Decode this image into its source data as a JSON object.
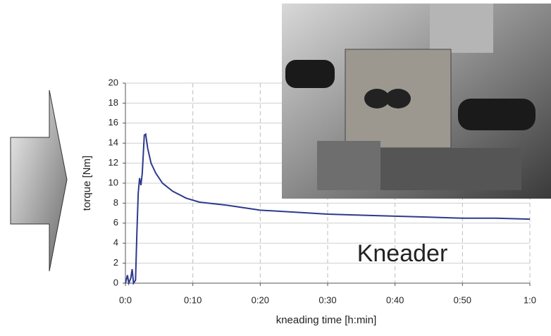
{
  "chart_data": {
    "type": "line",
    "xlabel": "kneading time [h:min]",
    "ylabel": "torque [Nm]",
    "annotation": "Kneader",
    "x": [
      0,
      0.3,
      0.5,
      0.8,
      1.0,
      1.2,
      1.5,
      1.7,
      1.9,
      2.1,
      2.3,
      2.5,
      2.8,
      3.0,
      3.3,
      3.8,
      4.5,
      5.5,
      7,
      9,
      11,
      15,
      20,
      25,
      30,
      35,
      40,
      45,
      50,
      55,
      60
    ],
    "values": [
      0,
      0.8,
      0,
      0.5,
      1.4,
      0,
      0.3,
      5,
      9,
      10.5,
      9.8,
      11,
      14.8,
      14.9,
      13.5,
      12,
      11,
      10,
      9.2,
      8.5,
      8.1,
      7.8,
      7.3,
      7.1,
      6.9,
      6.8,
      6.7,
      6.6,
      6.5,
      6.5,
      6.4
    ],
    "color": "#2e3a8c",
    "xlim": [
      0,
      60
    ],
    "xticks": [
      {
        "value": 0,
        "label": "0:0"
      },
      {
        "value": 10,
        "label": "0:10"
      },
      {
        "value": 20,
        "label": "0:20"
      },
      {
        "value": 30,
        "label": "0:30"
      },
      {
        "value": 40,
        "label": "0:40"
      },
      {
        "value": 50,
        "label": "0:50"
      },
      {
        "value": 60,
        "label": "1:0"
      }
    ],
    "ylim": [
      0,
      20
    ],
    "yticks": [
      0,
      2,
      4,
      6,
      8,
      10,
      12,
      14,
      16,
      18,
      20
    ],
    "grid": true
  }
}
